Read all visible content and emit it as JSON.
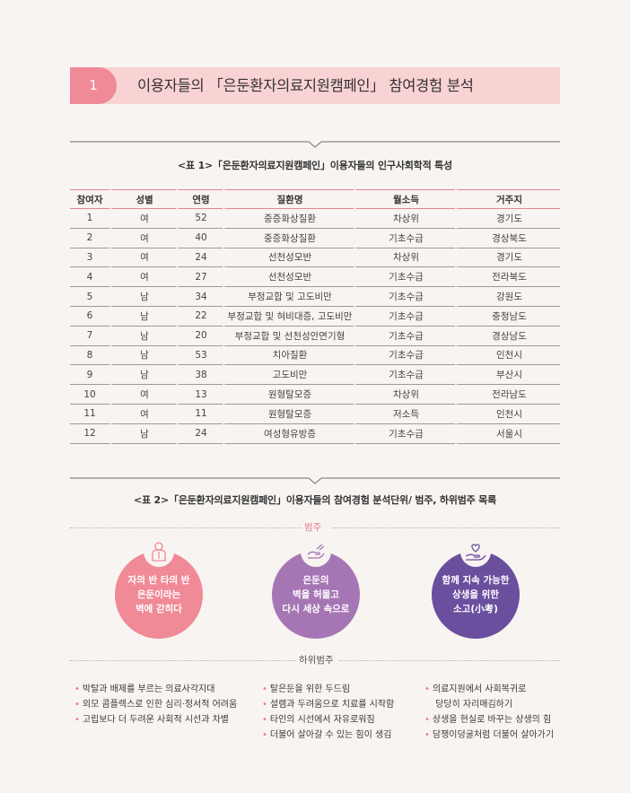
{
  "section": {
    "number": "1",
    "title": "이용자들의 「은둔환자의료지원캠페인」 참여경험 분석"
  },
  "table1": {
    "caption": "<표 1>「은둔환자의료지원캠페인」이용자들의 인구사회학적 특성",
    "headers": [
      "참여자",
      "성별",
      "연령",
      "질환명",
      "월소득",
      "거주지"
    ],
    "rows": [
      [
        "1",
        "여",
        "52",
        "중증화상질환",
        "차상위",
        "경기도"
      ],
      [
        "2",
        "여",
        "40",
        "중증화상질환",
        "기초수급",
        "경상북도"
      ],
      [
        "3",
        "여",
        "24",
        "선천성모반",
        "차상위",
        "경기도"
      ],
      [
        "4",
        "여",
        "27",
        "선천성모반",
        "기초수급",
        "전라북도"
      ],
      [
        "5",
        "남",
        "34",
        "부정교합 및 고도비만",
        "기초수급",
        "강원도"
      ],
      [
        "6",
        "남",
        "22",
        "부정교합 및 혀비대증, 고도비만",
        "기초수급",
        "충청남도"
      ],
      [
        "7",
        "남",
        "20",
        "부정교합 및 선천성안면기형",
        "기초수급",
        "경상남도"
      ],
      [
        "8",
        "남",
        "53",
        "치아질환",
        "기초수급",
        "인천시"
      ],
      [
        "9",
        "남",
        "38",
        "고도비만",
        "기초수급",
        "부산시"
      ],
      [
        "10",
        "여",
        "13",
        "원형탈모증",
        "차상위",
        "전라남도"
      ],
      [
        "11",
        "여",
        "11",
        "원형탈모증",
        "저소득",
        "인천시"
      ],
      [
        "12",
        "남",
        "24",
        "여성형유방증",
        "기초수급",
        "서울시"
      ]
    ]
  },
  "table2": {
    "caption": "<표 2>「은둔환자의료지원캠페인」이용자들의 참여경험 분석단위/ 범주, 하위범주 목록",
    "category_label": "범주",
    "subcategory_label": "하위범주",
    "categories": [
      {
        "text": "자의 반 타의 반\n은둔이라는\n벽에 갇히다",
        "color": "#ef8a96",
        "icon": "person-icon"
      },
      {
        "text": "은둔의\n벽을 허물고\n다시 세상 속으로",
        "color": "#a676b4",
        "icon": "helping-hand-icon"
      },
      {
        "text": "함께 지속 가능한\n상생을 위한\n소고(小考)",
        "color": "#6a4f9e",
        "icon": "heart-hand-icon"
      }
    ],
    "subcategories": [
      [
        "박탈과 배제를 부르는 의료사각지대",
        "외모 콤플렉스로 인한 심리·정서적 어려움",
        "고립보다 더 두려운 사회적 시선과 차별"
      ],
      [
        "탈은둔을 위한 두드림",
        "설렘과 두려움으로 치료를 시작함",
        "타인의 시선에서 자유로워짐",
        "더불어 살아갈 수 있는 힘이 생김"
      ],
      [
        "의료지원에서 사회복귀로",
        "  당당히 자리매김하기",
        "상생을 현실로 바꾸는 상생의 힘",
        "담쟁이덩굴처럼 더불어 살아가기"
      ]
    ],
    "bullet": "•"
  }
}
